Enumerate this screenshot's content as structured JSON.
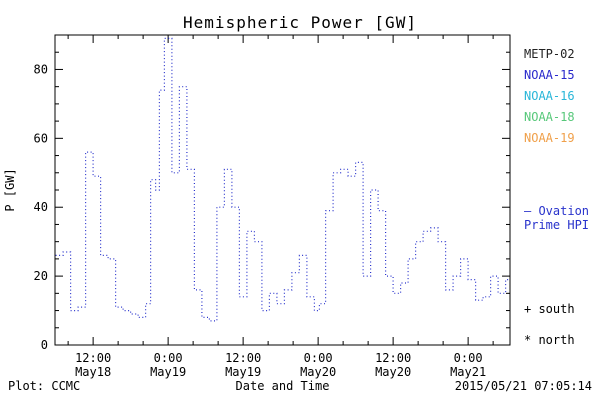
{
  "colors": {
    "background": "#ffffff",
    "frame": "#000000",
    "line": "#2933cc",
    "text": "#000000"
  },
  "legend": {
    "satellites": [
      {
        "label": "METP-02",
        "color": "#222222"
      },
      {
        "label": "NOAA-15",
        "color": "#2929cc"
      },
      {
        "label": "NOAA-16",
        "color": "#29b6d8"
      },
      {
        "label": "NOAA-18",
        "color": "#57c87a"
      },
      {
        "label": "NOAA-19",
        "color": "#f0a04a"
      }
    ],
    "ovation": {
      "line1": "– Ovation",
      "line2": "Prime HPI",
      "color": "#2933cc"
    },
    "south_label": "+ south",
    "north_label": "* north"
  },
  "footer": {
    "plot_credit": "Plot: CCMC",
    "timestamp": "2015/05/21 07:05:14"
  },
  "chart_data": {
    "type": "line",
    "style": "dotted step line",
    "title": "Hemispheric Power [GW]",
    "xlabel": "Date and Time",
    "ylabel": "P [GW]",
    "x_unit": "hours since 2015-05-18 00:00 UTC",
    "xrange": [
      5.9,
      78.7
    ],
    "ylim": [
      0,
      90
    ],
    "yticks": [
      0,
      20,
      40,
      60,
      80
    ],
    "xticks": [
      {
        "t": 12,
        "time": "12:00",
        "date": "May18"
      },
      {
        "t": 24,
        "time": "0:00",
        "date": "May19"
      },
      {
        "t": 36,
        "time": "12:00",
        "date": "May19"
      },
      {
        "t": 48,
        "time": "0:00",
        "date": "May20"
      },
      {
        "t": 60,
        "time": "12:00",
        "date": "May20"
      },
      {
        "t": 72,
        "time": "0:00",
        "date": "May21"
      }
    ],
    "x": [
      6.0,
      7.2,
      8.4,
      9.6,
      10.8,
      12.0,
      13.2,
      14.4,
      15.6,
      16.8,
      18.0,
      19.2,
      20.4,
      21.2,
      22.0,
      22.6,
      23.4,
      24.6,
      25.8,
      27.0,
      28.2,
      29.4,
      30.6,
      31.8,
      33.0,
      34.2,
      35.4,
      36.6,
      37.8,
      39.0,
      40.2,
      41.4,
      42.6,
      43.8,
      45.0,
      46.2,
      47.4,
      48.2,
      49.2,
      50.4,
      51.6,
      52.8,
      54.0,
      55.2,
      56.4,
      57.6,
      58.8,
      60.0,
      61.2,
      62.4,
      63.6,
      64.8,
      66.0,
      67.2,
      68.4,
      69.6,
      70.8,
      72.0,
      73.2,
      74.4,
      75.6,
      76.8,
      78.0
    ],
    "values": [
      26,
      27,
      10,
      11,
      56,
      49,
      26,
      25,
      11,
      10,
      9,
      8,
      12,
      48,
      45,
      74,
      89,
      50,
      75,
      51,
      16,
      8,
      7,
      40,
      51,
      40,
      14,
      33,
      30,
      10,
      15,
      12,
      16,
      21,
      26,
      14,
      10,
      12,
      39,
      50,
      51,
      49,
      53,
      20,
      45,
      39,
      20,
      15,
      18,
      25,
      30,
      33,
      34,
      30,
      16,
      20,
      25,
      19,
      13,
      14,
      20,
      15,
      19
    ]
  }
}
